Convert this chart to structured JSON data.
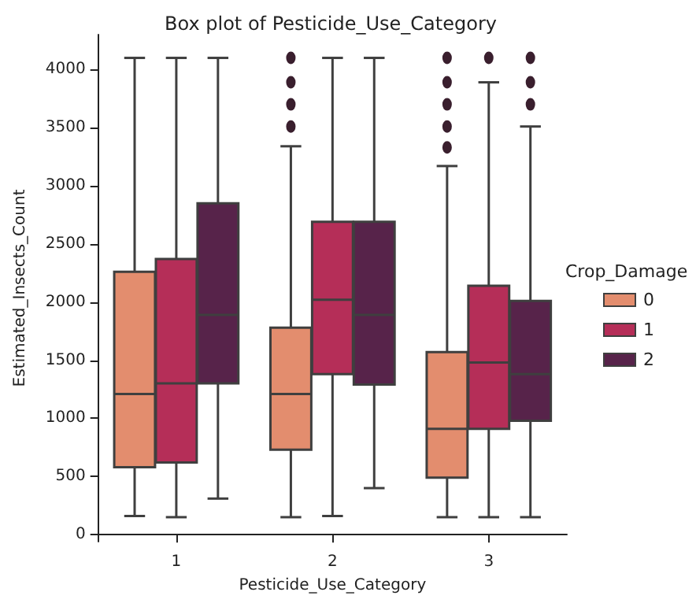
{
  "chart_data": {
    "type": "box",
    "title": "Box plot of Pesticide_Use_Category",
    "xlabel": "Pesticide_Use_Category",
    "ylabel": "Estimated_Insects_Count",
    "legend_title": "Crop_Damage",
    "categories": [
      "1",
      "2",
      "3"
    ],
    "series": [
      {
        "name": "0",
        "color": "#e38d6e",
        "boxes": [
          {
            "low": 160,
            "q1": 580,
            "median": 1210,
            "q3": 2260,
            "high": 4100
          },
          {
            "low": 150,
            "q1": 730,
            "median": 1210,
            "q3": 1780,
            "high": 3340,
            "outliers": [
              3510,
              3700,
              3890,
              4100
            ]
          },
          {
            "low": 150,
            "q1": 490,
            "median": 910,
            "q3": 1570,
            "high": 3170,
            "outliers": [
              3330,
              3510,
              3700,
              3890,
              4100
            ]
          }
        ]
      },
      {
        "name": "1",
        "color": "#b52e58",
        "boxes": [
          {
            "low": 150,
            "q1": 620,
            "median": 1300,
            "q3": 2370,
            "high": 4100
          },
          {
            "low": 160,
            "q1": 1380,
            "median": 2020,
            "q3": 2690,
            "high": 4100
          },
          {
            "low": 150,
            "q1": 910,
            "median": 1480,
            "q3": 2140,
            "high": 3890,
            "outliers": [
              4100
            ]
          }
        ]
      },
      {
        "name": "2",
        "color": "#57234a",
        "boxes": [
          {
            "low": 310,
            "q1": 1300,
            "median": 1890,
            "q3": 2850,
            "high": 4100
          },
          {
            "low": 400,
            "q1": 1290,
            "median": 1890,
            "q3": 2690,
            "high": 4100
          },
          {
            "low": 150,
            "q1": 980,
            "median": 1380,
            "q3": 2010,
            "high": 3510,
            "outliers": [
              3700,
              3890,
              4100
            ]
          }
        ]
      }
    ],
    "ylim": [
      -60,
      4300
    ],
    "yticks": [
      0,
      500,
      1000,
      1500,
      2000,
      2500,
      3000,
      3500,
      4000
    ],
    "grid": false,
    "legend": "right"
  }
}
